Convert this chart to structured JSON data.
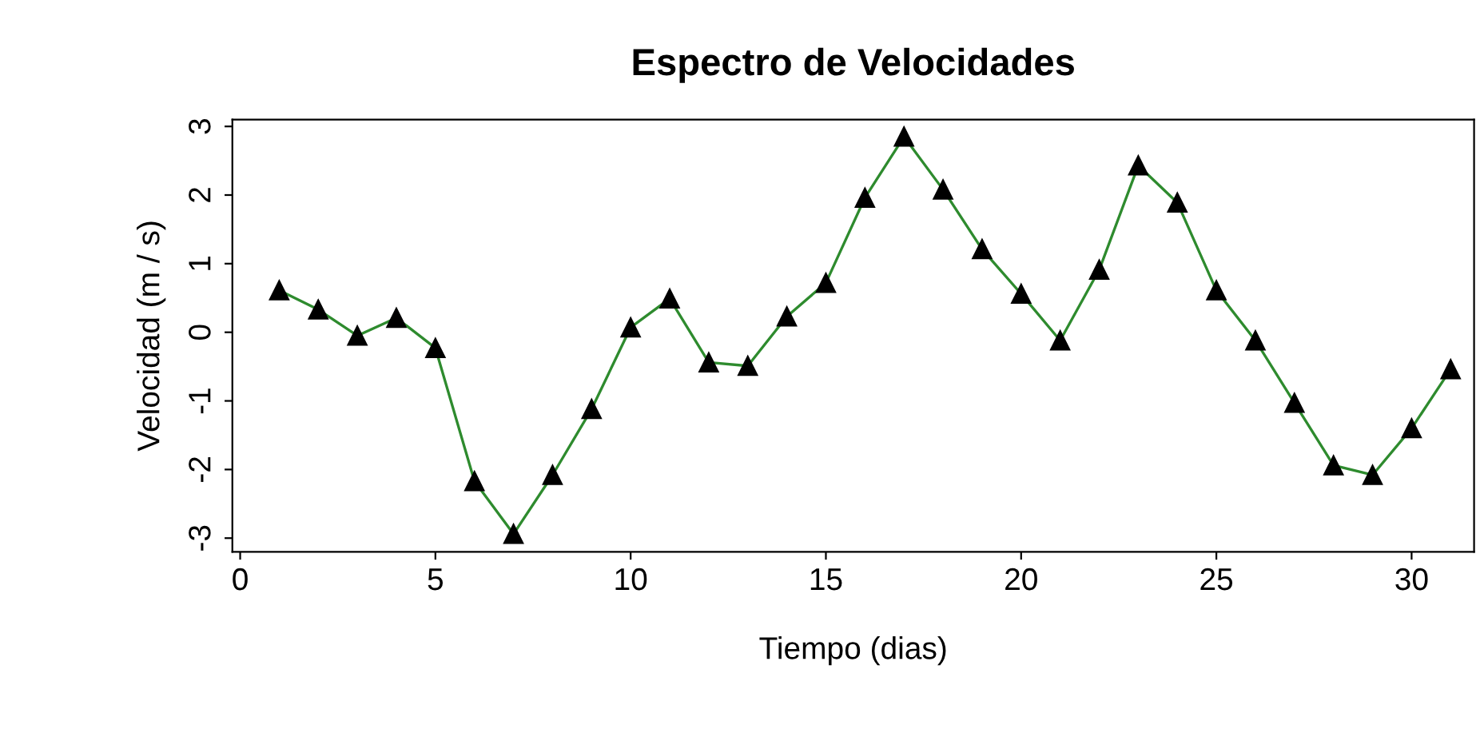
{
  "chart_data": {
    "type": "line",
    "title": "Espectro de Velocidades",
    "xlabel": "Tiempo (dias)",
    "ylabel": "Velocidad (m / s)",
    "x": [
      1,
      2,
      3,
      4,
      5,
      6,
      7,
      8,
      9,
      10,
      11,
      12,
      13,
      14,
      15,
      16,
      17,
      18,
      19,
      20,
      21,
      22,
      23,
      24,
      25,
      26,
      27,
      28,
      29,
      30,
      31
    ],
    "series": [
      {
        "color": "#2e8b2e",
        "values": [
          0.61,
          0.33,
          -0.05,
          0.21,
          -0.23,
          -2.17,
          -2.94,
          -2.08,
          -1.12,
          0.07,
          0.49,
          -0.44,
          -0.49,
          0.23,
          0.72,
          1.96,
          2.85,
          2.08,
          1.21,
          0.56,
          -0.12,
          0.91,
          2.43,
          1.89,
          0.61,
          -0.12,
          -1.03,
          -1.94,
          -2.08,
          -1.4,
          -0.54
        ]
      }
    ],
    "xlim": [
      -0.2,
      31.6
    ],
    "ylim": [
      -3.2,
      3.1
    ],
    "xticks": [
      0,
      5,
      10,
      15,
      20,
      25,
      30
    ],
    "yticks": [
      -3,
      -2,
      -1,
      0,
      1,
      2,
      3
    ],
    "marker": "triangle",
    "line_style": "solid",
    "grid": false,
    "legend": false
  }
}
